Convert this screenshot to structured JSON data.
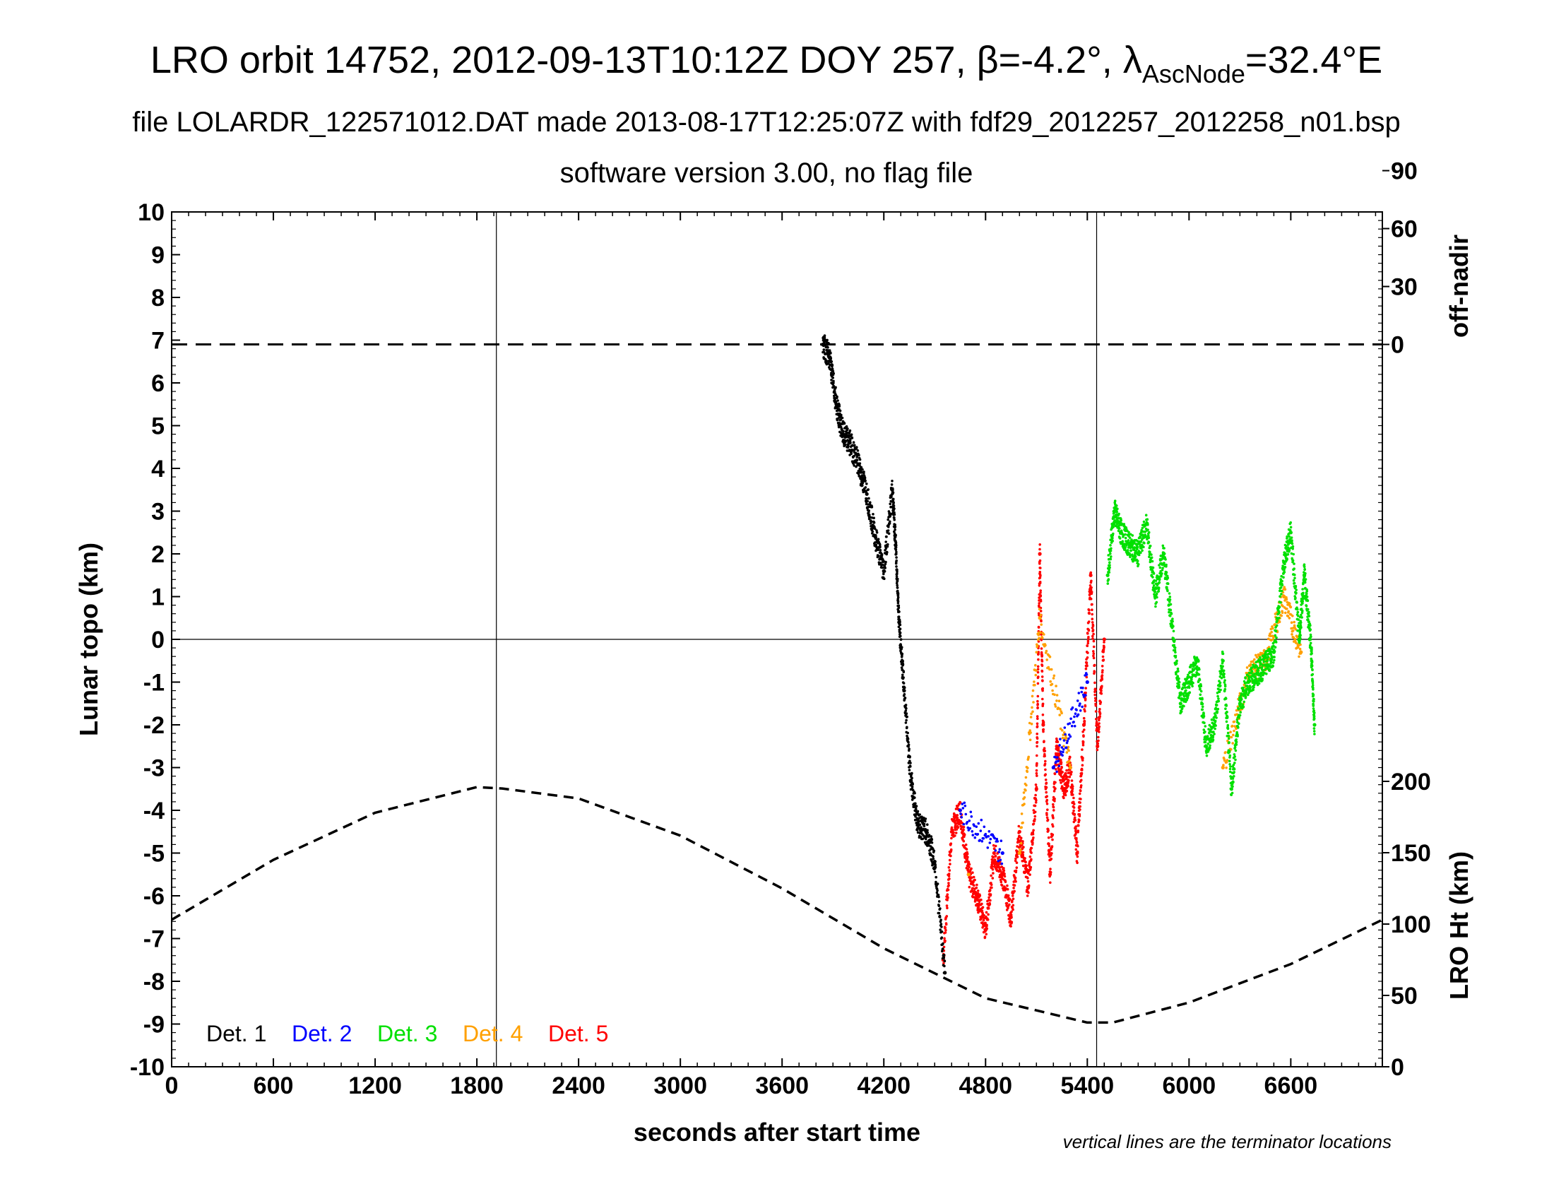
{
  "title_main_prefix": "LRO orbit 14752, 2012-09-13T10:12Z DOY 257, β=-4.2°, λ",
  "title_main_sub": "AscNode",
  "title_main_suffix": "=32.4°E",
  "subtitle_1": "file LOLARDR_122571012.DAT made 2013-08-17T12:25:07Z with fdf29_2012257_2012258_n01.bsp",
  "subtitle_2": "software version 3.00, no flag file",
  "note": "vertical lines are the terminator locations",
  "colors": {
    "det1": "#000000",
    "det2": "#0000ff",
    "det3": "#00e000",
    "det4": "#ffa000",
    "det5": "#ff0000"
  },
  "chart_data": {
    "type": "scatter",
    "xlabel": "seconds after start time",
    "ylabel": "Lunar topo (km)",
    "y2label_top": "off-nadir",
    "y2label_bottom": "LRO Ht (km)",
    "xlim": [
      0,
      7140
    ],
    "ylim": [
      -10,
      10
    ],
    "xticks": [
      "0",
      "600",
      "1200",
      "1800",
      "2400",
      "3000",
      "3600",
      "4200",
      "4800",
      "5400",
      "6000",
      "6600"
    ],
    "yticks": [
      "-10",
      "-9",
      "-8",
      "-7",
      "-6",
      "-5",
      "-4",
      "-3",
      "-2",
      "-1",
      "0",
      "1",
      "2",
      "3",
      "4",
      "5",
      "6",
      "7",
      "8",
      "9",
      "10"
    ],
    "offnadir_ticks": [
      "0",
      "30",
      "60",
      "90"
    ],
    "height_ticks": [
      "0",
      "50",
      "100",
      "150",
      "200"
    ],
    "terminator_x": [
      1915,
      5455
    ],
    "offnadir_deg": 0,
    "lro_height_km": {
      "x": [
        0,
        600,
        1200,
        1800,
        1950,
        2400,
        3000,
        3600,
        4200,
        4800,
        5400,
        5550,
        6000,
        6600,
        7140
      ],
      "y": [
        103,
        145,
        178,
        196,
        195,
        188,
        162,
        125,
        83,
        48,
        31,
        31,
        45,
        72,
        103
      ]
    },
    "legend": [
      "Det. 1",
      "Det. 2",
      "Det. 3",
      "Det. 4",
      "Det. 5"
    ],
    "series": [
      {
        "name": "Det. 1",
        "x": [
          3840,
          3880,
          3920,
          3960,
          4000,
          4050,
          4100,
          4150,
          4200,
          4250,
          4270,
          4290,
          4320,
          4360,
          4400,
          4450,
          4500,
          4560
        ],
        "y": [
          6.9,
          6.6,
          5.5,
          4.8,
          4.6,
          4.1,
          3.4,
          2.4,
          1.6,
          3.5,
          2.2,
          0.4,
          -1.2,
          -3.3,
          -4.3,
          -4.5,
          -5.2,
          -7.8
        ]
      },
      {
        "name": "Det. 2",
        "x": [
          4650,
          4900,
          5200,
          5400
        ],
        "y": [
          -4.0,
          -5.0,
          -3.0,
          -1.0
        ]
      },
      {
        "name": "Det. 3",
        "x": [
          5520,
          5560,
          5600,
          5650,
          5700,
          5750,
          5800,
          5850,
          5900,
          5950,
          6000,
          6050,
          6100,
          6150,
          6200,
          6250,
          6300,
          6350,
          6400,
          6450,
          6500,
          6560,
          6600,
          6650,
          6680,
          6720,
          6740
        ],
        "y": [
          1.5,
          3.0,
          2.5,
          2.2,
          2.0,
          2.7,
          1.0,
          2.0,
          0.3,
          -1.5,
          -1.0,
          -0.5,
          -2.5,
          -2.0,
          -0.5,
          -3.5,
          -1.5,
          -1.0,
          -0.8,
          -0.6,
          -0.3,
          1.8,
          2.5,
          0.0,
          1.5,
          -0.2,
          -2.0
        ]
      },
      {
        "name": "Det. 4",
        "x": [
          4700,
          5000,
          5120,
          5300,
          6200,
          6350,
          6450,
          6560,
          6660
        ],
        "y": [
          -5.5,
          -5.0,
          0.5,
          -3.0,
          -3.0,
          -0.8,
          -0.5,
          1.0,
          -0.3
        ]
      },
      {
        "name": "Det. 5",
        "x": [
          4550,
          4600,
          4650,
          4700,
          4750,
          4800,
          4850,
          4900,
          4950,
          5000,
          5050,
          5100,
          5120,
          5140,
          5180,
          5220,
          5260,
          5300,
          5340,
          5380,
          5420,
          5460,
          5500
        ],
        "y": [
          -7.5,
          -4.5,
          -4.0,
          -5.5,
          -6.0,
          -6.8,
          -5.0,
          -5.5,
          -6.5,
          -4.5,
          -5.8,
          -3.5,
          2.0,
          -2.0,
          -5.5,
          -2.5,
          -3.5,
          -3.0,
          -5.0,
          -2.0,
          1.5,
          -2.5,
          0.0
        ]
      }
    ]
  }
}
